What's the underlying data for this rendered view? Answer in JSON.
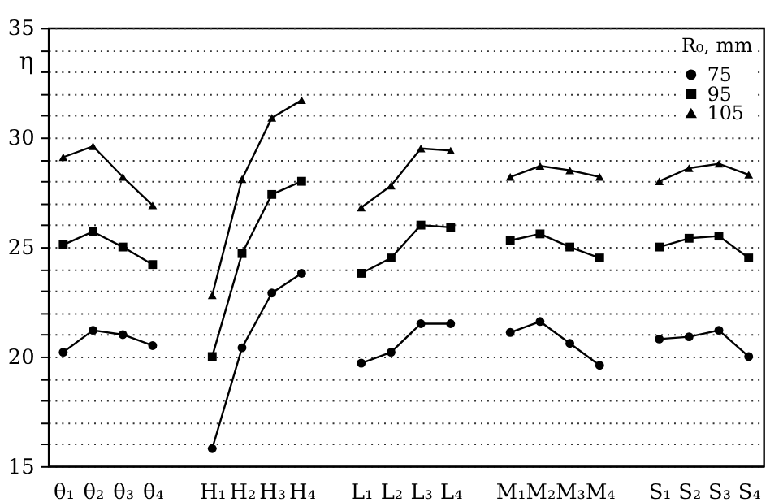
{
  "chart_data": {
    "type": "line",
    "ylabel": "η",
    "legend_title": "R₀, mm",
    "categories": [
      "θ₁",
      "θ₂",
      "θ₃",
      "θ₄",
      null,
      "H₁",
      "H₂",
      "H₃",
      "H₄",
      null,
      "L₁",
      "L₂",
      "L₃",
      "L₄",
      null,
      "M₁",
      "M₂",
      "M₃",
      "M₄",
      null,
      "S₁",
      "S₂",
      "S₃",
      "S₄"
    ],
    "series": [
      {
        "name": "75",
        "color": "#000000",
        "marker": "circle",
        "values": [
          20.2,
          21.2,
          21.0,
          20.5,
          null,
          15.8,
          20.4,
          22.9,
          23.8,
          null,
          19.7,
          20.2,
          21.5,
          21.5,
          null,
          21.1,
          21.6,
          20.6,
          19.6,
          null,
          20.8,
          20.9,
          21.2,
          20.0
        ]
      },
      {
        "name": "95",
        "color": "#000000",
        "marker": "square",
        "values": [
          25.1,
          25.7,
          25.0,
          24.2,
          null,
          20.0,
          24.7,
          27.4,
          28.0,
          null,
          23.8,
          24.5,
          26.0,
          25.9,
          null,
          25.3,
          25.6,
          25.0,
          24.5,
          null,
          25.0,
          25.4,
          25.5,
          24.5
        ]
      },
      {
        "name": "105",
        "color": "#000000",
        "marker": "triangle",
        "values": [
          29.1,
          29.6,
          28.2,
          26.9,
          null,
          22.8,
          28.1,
          30.9,
          31.7,
          null,
          26.8,
          27.8,
          29.5,
          29.4,
          null,
          28.2,
          28.7,
          28.5,
          28.2,
          null,
          28.0,
          28.6,
          28.8,
          28.3
        ]
      }
    ],
    "ylim": [
      15,
      35
    ],
    "yticks": [
      15,
      {
        "value": 16,
        "label": null
      },
      {
        "value": 17,
        "label": null
      },
      {
        "value": 18,
        "label": null
      },
      {
        "value": 19,
        "label": null
      },
      20,
      {
        "value": 21,
        "label": null
      },
      {
        "value": 22,
        "label": null
      },
      {
        "value": 23,
        "label": null
      },
      {
        "value": 24,
        "label": null
      },
      25,
      {
        "value": 26,
        "label": null
      },
      {
        "value": 27,
        "label": null
      },
      {
        "value": 28,
        "label": null
      },
      {
        "value": 29,
        "label": null
      },
      30,
      {
        "value": 31,
        "label": null
      },
      {
        "value": 32,
        "label": null
      },
      {
        "value": 33,
        "label": null
      },
      {
        "value": 34,
        "label": null
      },
      35
    ],
    "grid": "y",
    "legend": "top right",
    "line_style": "solid"
  }
}
